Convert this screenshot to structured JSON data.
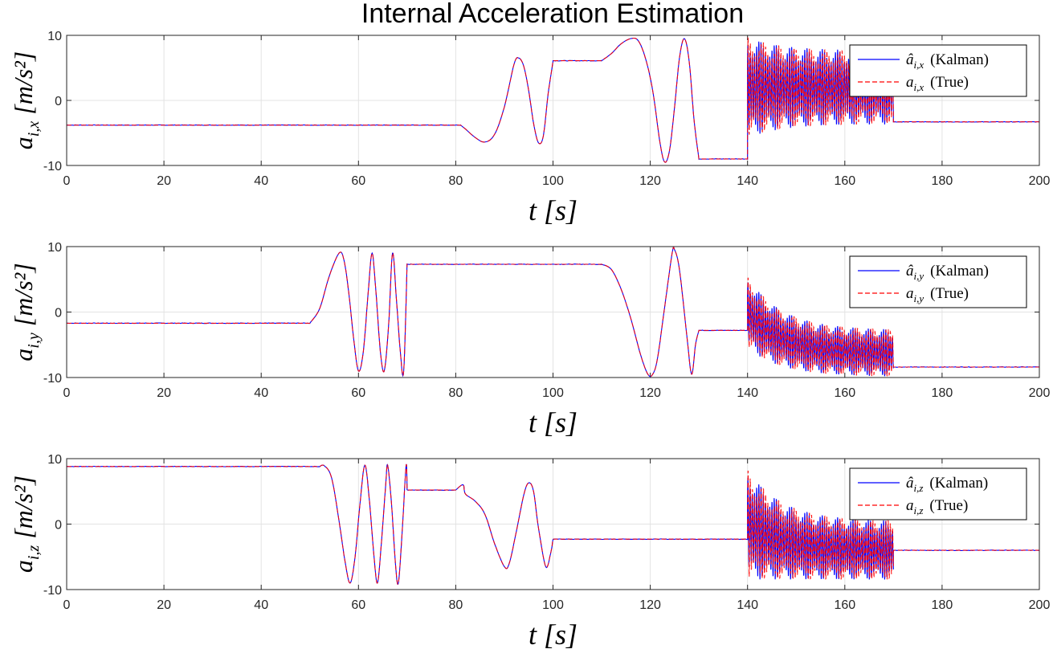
{
  "figure": {
    "title": "Internal Acceleration Estimation"
  },
  "chart_data": [
    {
      "type": "line",
      "ylabel_main": "a",
      "ylabel_sub": "i,x",
      "ylabel_unit": "[m/s²]",
      "xlabel_var": "t",
      "xlabel_unit": "[s]",
      "xlim": [
        0,
        200
      ],
      "ylim": [
        -10,
        10
      ],
      "xticks": [
        "0",
        "20",
        "40",
        "60",
        "80",
        "100",
        "120",
        "140",
        "160",
        "180",
        "200"
      ],
      "yticks": [
        "10",
        "0",
        "-10"
      ],
      "grid": true,
      "legend_position": "top-right",
      "legend": [
        {
          "hat": "â",
          "sub": "i,x",
          "label": "(Kalman)"
        },
        {
          "hat": "a",
          "sub": "i,x",
          "label": "(True)"
        }
      ],
      "segments": [
        {
          "t": [
            0,
            81
          ],
          "kind": "const",
          "v": -3.8
        },
        {
          "t": [
            81,
            100
          ],
          "kind": "points",
          "points": [
            [
              81,
              -3.8
            ],
            [
              82,
              -4.4
            ],
            [
              84,
              -5.7
            ],
            [
              86,
              -6.4
            ],
            [
              88,
              -5.2
            ],
            [
              90,
              -1.0
            ],
            [
              92,
              5.6
            ],
            [
              93,
              6.5
            ],
            [
              94,
              5.2
            ],
            [
              95,
              1.5
            ],
            [
              96,
              -3.5
            ],
            [
              97,
              -6.5
            ],
            [
              98,
              -5.5
            ],
            [
              99,
              1.0
            ],
            [
              100,
              6.0
            ]
          ]
        },
        {
          "t": [
            100,
            110
          ],
          "kind": "const",
          "v": 6.1
        },
        {
          "t": [
            110,
            130
          ],
          "kind": "points",
          "points": [
            [
              110,
              6.1
            ],
            [
              112,
              7.2
            ],
            [
              114,
              8.7
            ],
            [
              116,
              9.5
            ],
            [
              117.5,
              9.2
            ],
            [
              119,
              6.5
            ],
            [
              120.5,
              1.5
            ],
            [
              122,
              -6.5
            ],
            [
              123,
              -9.5
            ],
            [
              124,
              -7.5
            ],
            [
              125,
              -1.0
            ],
            [
              126,
              6.5
            ],
            [
              127,
              9.5
            ],
            [
              128,
              6.0
            ],
            [
              129,
              -3.0
            ],
            [
              130,
              -9.0
            ]
          ]
        },
        {
          "t": [
            130,
            140
          ],
          "kind": "const",
          "v": -9.0
        },
        {
          "t": [
            140,
            170
          ],
          "kind": "osc",
          "center_start": 2.0,
          "center_end": 2.0,
          "amp_start": 7.8,
          "amp_end": 5.7,
          "decay": 7.0,
          "period": 0.45
        },
        {
          "t": [
            170,
            200
          ],
          "kind": "const",
          "v": -3.3
        }
      ]
    },
    {
      "type": "line",
      "ylabel_main": "a",
      "ylabel_sub": "i,y",
      "ylabel_unit": "[m/s²]",
      "xlabel_var": "t",
      "xlabel_unit": "[s]",
      "xlim": [
        0,
        200
      ],
      "ylim": [
        -10,
        10
      ],
      "xticks": [
        "0",
        "20",
        "40",
        "60",
        "80",
        "100",
        "120",
        "140",
        "160",
        "180",
        "200"
      ],
      "yticks": [
        "10",
        "0",
        "-10"
      ],
      "grid": true,
      "legend_position": "top-right",
      "legend": [
        {
          "hat": "â",
          "sub": "i,y",
          "label": "(Kalman)"
        },
        {
          "hat": "a",
          "sub": "i,y",
          "label": "(True)"
        }
      ],
      "segments": [
        {
          "t": [
            0,
            50
          ],
          "kind": "const",
          "v": -1.7
        },
        {
          "t": [
            50,
            70
          ],
          "kind": "points",
          "points": [
            [
              50,
              -1.7
            ],
            [
              52,
              0.5
            ],
            [
              54,
              5.5
            ],
            [
              56,
              9.0
            ],
            [
              57,
              8.0
            ],
            [
              58,
              3.0
            ],
            [
              59,
              -4.0
            ],
            [
              60,
              -9.0
            ],
            [
              61,
              -6.0
            ],
            [
              62,
              3.0
            ],
            [
              62.8,
              9.0
            ],
            [
              63.6,
              3.0
            ],
            [
              64.5,
              -6.0
            ],
            [
              65.3,
              -9.0
            ],
            [
              66.2,
              -2.0
            ],
            [
              67,
              9.0
            ],
            [
              67.8,
              2.0
            ],
            [
              68.6,
              -6.0
            ],
            [
              69.3,
              -9.0
            ],
            [
              70,
              7.4
            ]
          ]
        },
        {
          "t": [
            70,
            110
          ],
          "kind": "const",
          "v": 7.3
        },
        {
          "t": [
            110,
            130
          ],
          "kind": "points",
          "points": [
            [
              110,
              7.3
            ],
            [
              112,
              6.5
            ],
            [
              114,
              3.5
            ],
            [
              116,
              -1.0
            ],
            [
              118,
              -6.5
            ],
            [
              119.5,
              -9.5
            ],
            [
              120.5,
              -9.5
            ],
            [
              121.5,
              -7.0
            ],
            [
              123,
              1.0
            ],
            [
              124.5,
              9.0
            ],
            [
              125,
              9.5
            ],
            [
              126,
              6.5
            ],
            [
              127.5,
              -3.5
            ],
            [
              128.5,
              -9.5
            ],
            [
              129.3,
              -5.0
            ],
            [
              130,
              -2.8
            ]
          ]
        },
        {
          "t": [
            130,
            140
          ],
          "kind": "const",
          "v": -2.8
        },
        {
          "t": [
            140,
            170
          ],
          "kind": "osc",
          "center_start": 0.0,
          "center_end": -6.3,
          "amp_start": 5.5,
          "amp_end": 3.6,
          "decay": 7.0,
          "period": 0.45
        },
        {
          "t": [
            170,
            200
          ],
          "kind": "const",
          "v": -8.4
        }
      ]
    },
    {
      "type": "line",
      "ylabel_main": "a",
      "ylabel_sub": "i,z",
      "ylabel_unit": "[m/s²]",
      "xlabel_var": "t",
      "xlabel_unit": "[s]",
      "xlim": [
        0,
        200
      ],
      "ylim": [
        -10,
        10
      ],
      "xticks": [
        "0",
        "20",
        "40",
        "60",
        "80",
        "100",
        "120",
        "140",
        "160",
        "180",
        "200"
      ],
      "yticks": [
        "10",
        "0",
        "-10"
      ],
      "grid": true,
      "legend_position": "top-right",
      "legend": [
        {
          "hat": "â",
          "sub": "i,z",
          "label": "(Kalman)"
        },
        {
          "hat": "a",
          "sub": "i,z",
          "label": "(True)"
        }
      ],
      "segments": [
        {
          "t": [
            0,
            52
          ],
          "kind": "const",
          "v": 8.8
        },
        {
          "t": [
            52,
            70
          ],
          "kind": "points",
          "points": [
            [
              52,
              8.8
            ],
            [
              53,
              8.9
            ],
            [
              54.5,
              7.0
            ],
            [
              56,
              0.5
            ],
            [
              57.3,
              -6.0
            ],
            [
              58.3,
              -9.0
            ],
            [
              59.3,
              -5.0
            ],
            [
              60.3,
              3.0
            ],
            [
              61.3,
              9.0
            ],
            [
              62.2,
              4.0
            ],
            [
              63.2,
              -5.0
            ],
            [
              63.9,
              -9.0
            ],
            [
              64.7,
              -3.0
            ],
            [
              65.6,
              6.0
            ],
            [
              66,
              9.0
            ],
            [
              66.8,
              3.0
            ],
            [
              67.6,
              -6.0
            ],
            [
              68.2,
              -9.0
            ],
            [
              69,
              -1.0
            ],
            [
              69.8,
              9.0
            ],
            [
              70,
              5.2
            ]
          ]
        },
        {
          "t": [
            70,
            80
          ],
          "kind": "const",
          "v": 5.2
        },
        {
          "t": [
            80,
            100
          ],
          "kind": "points",
          "points": [
            [
              80,
              5.2
            ],
            [
              81.5,
              6.0
            ],
            [
              82,
              4.6
            ],
            [
              84,
              3.5
            ],
            [
              86,
              1.5
            ],
            [
              88,
              -3.0
            ],
            [
              90,
              -6.5
            ],
            [
              91,
              -6.0
            ],
            [
              92.5,
              -1.0
            ],
            [
              94,
              4.5
            ],
            [
              95,
              6.3
            ],
            [
              96,
              5.0
            ],
            [
              97,
              -0.5
            ],
            [
              98.5,
              -6.5
            ],
            [
              99.5,
              -4.5
            ],
            [
              100,
              -2.3
            ]
          ]
        },
        {
          "t": [
            100,
            140
          ],
          "kind": "const",
          "v": -2.3
        },
        {
          "t": [
            140,
            170
          ],
          "kind": "osc",
          "center_start": 0.0,
          "center_end": -4.0,
          "amp_start": 8.5,
          "amp_end": 4.5,
          "decay": 7.0,
          "period": 0.45
        },
        {
          "t": [
            170,
            200
          ],
          "kind": "const",
          "v": -4.0
        }
      ]
    }
  ],
  "colors": {
    "kalman": "#0000ff",
    "true": "#ff0000",
    "axis": "#262626",
    "grid": "#e3e3e3"
  }
}
